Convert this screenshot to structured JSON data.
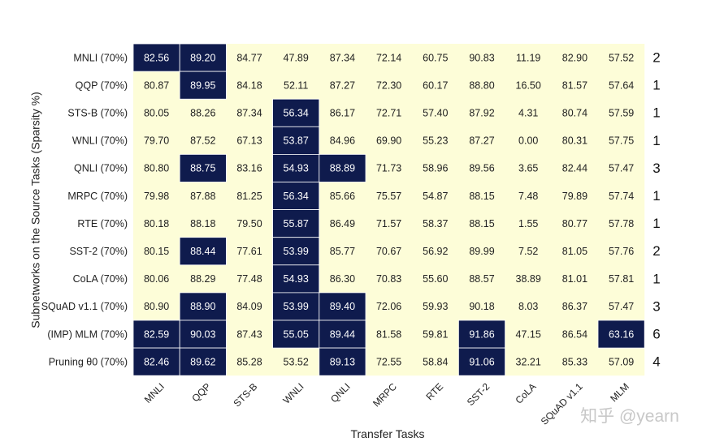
{
  "chart_data": {
    "type": "heatmap",
    "ylabel": "Subnetworks on the Source Tasks (Sparsity %)",
    "xlabel": "Transfer Tasks",
    "rows": [
      "MNLI (70%)",
      "QQP (70%)",
      "STS-B (70%)",
      "WNLI (70%)",
      "QNLI (70%)",
      "MRPC (70%)",
      "RTE (70%)",
      "SST-2 (70%)",
      "CoLA (70%)",
      "SQuAD v1.1 (70%)",
      "(IMP) MLM (70%)",
      "Pruning θ0 (70%)"
    ],
    "columns": [
      "MNLI",
      "QQP",
      "STS-B",
      "WNLI",
      "QNLI",
      "MRPC",
      "RTE",
      "SST-2",
      "CoLA",
      "SQuAD v1.1",
      "MLM"
    ],
    "values": [
      [
        "82.56",
        "89.20",
        "84.77",
        "47.89",
        "87.34",
        "72.14",
        "60.75",
        "90.83",
        "11.19",
        "82.90",
        "57.52"
      ],
      [
        "80.87",
        "89.95",
        "84.18",
        "52.11",
        "87.27",
        "72.30",
        "60.17",
        "88.80",
        "16.50",
        "81.57",
        "57.64"
      ],
      [
        "80.05",
        "88.26",
        "87.34",
        "56.34",
        "86.17",
        "72.71",
        "57.40",
        "87.92",
        "4.31",
        "80.74",
        "57.59"
      ],
      [
        "79.70",
        "87.52",
        "67.13",
        "53.87",
        "84.96",
        "69.90",
        "55.23",
        "87.27",
        "0.00",
        "80.31",
        "57.75"
      ],
      [
        "80.80",
        "88.75",
        "83.16",
        "54.93",
        "88.89",
        "71.73",
        "58.96",
        "89.56",
        "3.65",
        "82.44",
        "57.47"
      ],
      [
        "79.98",
        "87.88",
        "81.25",
        "56.34",
        "85.66",
        "75.57",
        "54.87",
        "88.15",
        "7.48",
        "79.89",
        "57.74"
      ],
      [
        "80.18",
        "88.18",
        "79.50",
        "55.87",
        "86.49",
        "71.57",
        "58.37",
        "88.15",
        "1.55",
        "80.77",
        "57.78"
      ],
      [
        "80.15",
        "88.44",
        "77.61",
        "53.99",
        "85.77",
        "70.67",
        "56.92",
        "89.99",
        "7.52",
        "81.05",
        "57.76"
      ],
      [
        "80.06",
        "88.29",
        "77.48",
        "54.93",
        "86.30",
        "70.83",
        "55.60",
        "88.57",
        "38.89",
        "81.01",
        "57.81"
      ],
      [
        "80.90",
        "88.90",
        "84.09",
        "53.99",
        "89.40",
        "72.06",
        "59.93",
        "90.18",
        "8.03",
        "86.37",
        "57.47"
      ],
      [
        "82.59",
        "90.03",
        "87.43",
        "55.05",
        "89.44",
        "81.58",
        "59.81",
        "91.86",
        "47.15",
        "86.54",
        "63.16"
      ],
      [
        "82.46",
        "89.62",
        "85.28",
        "53.52",
        "89.13",
        "72.55",
        "58.84",
        "91.06",
        "32.21",
        "85.33",
        "57.09"
      ]
    ],
    "highlighted": [
      [
        1,
        1,
        0,
        0,
        0,
        0,
        0,
        0,
        0,
        0,
        0
      ],
      [
        0,
        1,
        0,
        0,
        0,
        0,
        0,
        0,
        0,
        0,
        0
      ],
      [
        0,
        0,
        0,
        1,
        0,
        0,
        0,
        0,
        0,
        0,
        0
      ],
      [
        0,
        0,
        0,
        1,
        0,
        0,
        0,
        0,
        0,
        0,
        0
      ],
      [
        0,
        1,
        0,
        1,
        1,
        0,
        0,
        0,
        0,
        0,
        0
      ],
      [
        0,
        0,
        0,
        1,
        0,
        0,
        0,
        0,
        0,
        0,
        0
      ],
      [
        0,
        0,
        0,
        1,
        0,
        0,
        0,
        0,
        0,
        0,
        0
      ],
      [
        0,
        1,
        0,
        1,
        0,
        0,
        0,
        0,
        0,
        0,
        0
      ],
      [
        0,
        0,
        0,
        1,
        0,
        0,
        0,
        0,
        0,
        0,
        0
      ],
      [
        0,
        1,
        0,
        1,
        1,
        0,
        0,
        0,
        0,
        0,
        0
      ],
      [
        1,
        1,
        0,
        1,
        1,
        0,
        0,
        1,
        0,
        0,
        1
      ],
      [
        1,
        1,
        0,
        0,
        1,
        0,
        0,
        1,
        0,
        0,
        0
      ]
    ],
    "row_counts": [
      "2",
      "1",
      "1",
      "1",
      "3",
      "1",
      "1",
      "2",
      "1",
      "3",
      "6",
      "4"
    ],
    "colors": {
      "highlight": "#0f1b4d",
      "base": "#fdfdd8",
      "highlight_text": "#ffffff",
      "base_text": "#222222",
      "separator": "#ffffff"
    }
  },
  "watermark": "知乎 @yearn"
}
